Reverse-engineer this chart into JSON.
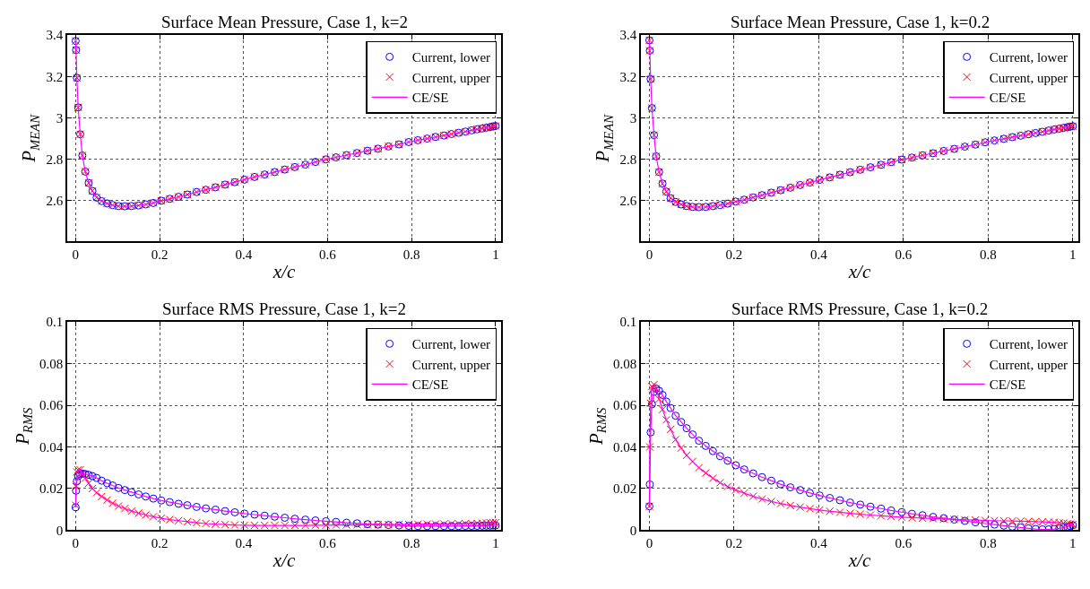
{
  "chart_data": [
    {
      "type": "scatter",
      "title": "Surface Mean Pressure, Case 1, k=2",
      "xlabel": "x/c",
      "ylabel": "P$_{MEAN}$",
      "xlim": [
        -0.02,
        1.013
      ],
      "ylim": [
        2.4,
        3.4
      ],
      "xticks": [
        0,
        0.2,
        0.4,
        0.6,
        0.8,
        1
      ],
      "yticks": [
        2.6,
        2.8,
        3,
        3.2,
        3.4
      ],
      "grid": true,
      "legend": "top right",
      "x": [
        0,
        0.001,
        0.003,
        0.006,
        0.011,
        0.016,
        0.023,
        0.031,
        0.04,
        0.05,
        0.062,
        0.075,
        0.088,
        0.102,
        0.117,
        0.133,
        0.15,
        0.167,
        0.185,
        0.204,
        0.224,
        0.245,
        0.266,
        0.288,
        0.31,
        0.333,
        0.356,
        0.379,
        0.402,
        0.426,
        0.45,
        0.474,
        0.498,
        0.522,
        0.547,
        0.571,
        0.596,
        0.62,
        0.645,
        0.67,
        0.695,
        0.72,
        0.745,
        0.77,
        0.793,
        0.815,
        0.837,
        0.857,
        0.877,
        0.895,
        0.912,
        0.928,
        0.943,
        0.956,
        0.968,
        0.978,
        0.987,
        0.994,
        1.0
      ],
      "series": [
        {
          "name": "Current, lower",
          "marker": "circle",
          "color": "#0000ff",
          "values": [
            3.372,
            3.328,
            3.193,
            3.05,
            2.92,
            2.817,
            2.739,
            2.684,
            2.645,
            2.613,
            2.596,
            2.585,
            2.577,
            2.572,
            2.571,
            2.572,
            2.575,
            2.58,
            2.587,
            2.598,
            2.607,
            2.617,
            2.628,
            2.64,
            2.651,
            2.663,
            2.676,
            2.688,
            2.7,
            2.713,
            2.725,
            2.737,
            2.749,
            2.761,
            2.773,
            2.786,
            2.798,
            2.808,
            2.819,
            2.829,
            2.84,
            2.85,
            2.861,
            2.871,
            2.882,
            2.891,
            2.899,
            2.907,
            2.914,
            2.921,
            2.927,
            2.933,
            2.939,
            2.944,
            2.948,
            2.952,
            2.955,
            2.958,
            2.96
          ]
        },
        {
          "name": "Current, upper",
          "marker": "cross",
          "color": "#ff0000",
          "values": [
            3.372,
            3.328,
            3.193,
            3.05,
            2.92,
            2.817,
            2.739,
            2.684,
            2.645,
            2.613,
            2.596,
            2.585,
            2.577,
            2.572,
            2.571,
            2.572,
            2.575,
            2.58,
            2.587,
            2.598,
            2.607,
            2.617,
            2.628,
            2.64,
            2.651,
            2.663,
            2.676,
            2.688,
            2.7,
            2.713,
            2.725,
            2.737,
            2.749,
            2.761,
            2.773,
            2.786,
            2.798,
            2.808,
            2.819,
            2.829,
            2.84,
            2.85,
            2.861,
            2.871,
            2.882,
            2.891,
            2.899,
            2.907,
            2.914,
            2.921,
            2.927,
            2.933,
            2.939,
            2.944,
            2.948,
            2.952,
            2.955,
            2.958,
            2.96
          ]
        },
        {
          "name": "CE/SE",
          "type": "line",
          "line_style": "solid",
          "color": "#ff00ff",
          "values": [
            3.372,
            3.328,
            3.193,
            3.05,
            2.92,
            2.817,
            2.739,
            2.684,
            2.645,
            2.613,
            2.596,
            2.585,
            2.577,
            2.572,
            2.571,
            2.572,
            2.575,
            2.58,
            2.587,
            2.598,
            2.607,
            2.617,
            2.628,
            2.64,
            2.651,
            2.663,
            2.676,
            2.688,
            2.7,
            2.713,
            2.725,
            2.737,
            2.749,
            2.761,
            2.773,
            2.786,
            2.798,
            2.808,
            2.819,
            2.829,
            2.84,
            2.85,
            2.861,
            2.871,
            2.882,
            2.891,
            2.899,
            2.907,
            2.914,
            2.921,
            2.927,
            2.933,
            2.939,
            2.944,
            2.948,
            2.952,
            2.955,
            2.958,
            2.96
          ]
        }
      ]
    },
    {
      "type": "scatter",
      "title": "Surface Mean Pressure, Case 1, k=0.2",
      "xlabel": "x/c",
      "ylabel": "P$_{MEAN}$",
      "xlim": [
        -0.02,
        1.013
      ],
      "ylim": [
        2.4,
        3.4
      ],
      "xticks": [
        0,
        0.2,
        0.4,
        0.6,
        0.8,
        1
      ],
      "yticks": [
        2.6,
        2.8,
        3,
        3.2,
        3.4
      ],
      "grid": true,
      "legend": "top right",
      "x": [
        0,
        0.001,
        0.003,
        0.006,
        0.011,
        0.016,
        0.023,
        0.031,
        0.04,
        0.05,
        0.062,
        0.075,
        0.088,
        0.102,
        0.117,
        0.133,
        0.15,
        0.167,
        0.185,
        0.204,
        0.224,
        0.245,
        0.266,
        0.288,
        0.31,
        0.333,
        0.356,
        0.379,
        0.402,
        0.426,
        0.45,
        0.474,
        0.498,
        0.522,
        0.547,
        0.571,
        0.596,
        0.62,
        0.645,
        0.67,
        0.695,
        0.72,
        0.745,
        0.77,
        0.793,
        0.815,
        0.837,
        0.857,
        0.877,
        0.895,
        0.912,
        0.928,
        0.943,
        0.956,
        0.968,
        0.978,
        0.987,
        0.994,
        1.0
      ],
      "series": [
        {
          "name": "Current, lower",
          "marker": "circle",
          "color": "#0000ff",
          "values": [
            3.375,
            3.325,
            3.187,
            3.047,
            2.916,
            2.813,
            2.737,
            2.681,
            2.642,
            2.61,
            2.592,
            2.58,
            2.572,
            2.568,
            2.567,
            2.568,
            2.572,
            2.577,
            2.584,
            2.594,
            2.603,
            2.614,
            2.625,
            2.637,
            2.649,
            2.661,
            2.674,
            2.686,
            2.699,
            2.711,
            2.724,
            2.736,
            2.748,
            2.76,
            2.772,
            2.785,
            2.797,
            2.807,
            2.818,
            2.828,
            2.839,
            2.849,
            2.86,
            2.87,
            2.881,
            2.89,
            2.898,
            2.906,
            2.913,
            2.92,
            2.926,
            2.932,
            2.938,
            2.943,
            2.947,
            2.951,
            2.954,
            2.957,
            2.959
          ]
        },
        {
          "name": "Current, upper",
          "marker": "cross",
          "color": "#ff0000",
          "values": [
            3.375,
            3.325,
            3.187,
            3.047,
            2.916,
            2.813,
            2.737,
            2.681,
            2.642,
            2.61,
            2.592,
            2.58,
            2.572,
            2.568,
            2.567,
            2.568,
            2.572,
            2.577,
            2.584,
            2.594,
            2.603,
            2.614,
            2.625,
            2.637,
            2.649,
            2.661,
            2.674,
            2.686,
            2.699,
            2.711,
            2.724,
            2.736,
            2.748,
            2.76,
            2.772,
            2.785,
            2.797,
            2.807,
            2.818,
            2.828,
            2.839,
            2.849,
            2.86,
            2.87,
            2.881,
            2.89,
            2.898,
            2.906,
            2.913,
            2.92,
            2.926,
            2.932,
            2.938,
            2.943,
            2.947,
            2.951,
            2.954,
            2.957,
            2.959
          ]
        },
        {
          "name": "CE/SE",
          "type": "line",
          "line_style": "solid",
          "color": "#ff00ff",
          "values": [
            3.375,
            3.325,
            3.187,
            3.047,
            2.916,
            2.813,
            2.737,
            2.681,
            2.642,
            2.61,
            2.592,
            2.58,
            2.572,
            2.568,
            2.567,
            2.568,
            2.572,
            2.577,
            2.584,
            2.594,
            2.603,
            2.614,
            2.625,
            2.637,
            2.649,
            2.661,
            2.674,
            2.686,
            2.699,
            2.711,
            2.724,
            2.736,
            2.748,
            2.76,
            2.772,
            2.785,
            2.797,
            2.807,
            2.818,
            2.828,
            2.839,
            2.849,
            2.86,
            2.87,
            2.881,
            2.89,
            2.898,
            2.906,
            2.913,
            2.92,
            2.926,
            2.932,
            2.938,
            2.943,
            2.947,
            2.951,
            2.954,
            2.957,
            2.959
          ]
        }
      ]
    },
    {
      "type": "scatter",
      "title": "Surface RMS Pressure, Case 1, k=2",
      "xlabel": "x/c",
      "ylabel": "P$_{RMS}$",
      "xlim": [
        -0.02,
        1.013
      ],
      "ylim": [
        0,
        0.1
      ],
      "xticks": [
        0,
        0.2,
        0.4,
        0.6,
        0.8,
        1
      ],
      "yticks": [
        0,
        0.02,
        0.04,
        0.06,
        0.08,
        0.1
      ],
      "grid": true,
      "legend": "top right",
      "x": [
        0,
        0.001,
        0.003,
        0.006,
        0.011,
        0.016,
        0.023,
        0.031,
        0.04,
        0.05,
        0.062,
        0.075,
        0.088,
        0.102,
        0.117,
        0.133,
        0.15,
        0.167,
        0.185,
        0.204,
        0.224,
        0.245,
        0.266,
        0.288,
        0.31,
        0.333,
        0.356,
        0.379,
        0.402,
        0.426,
        0.45,
        0.474,
        0.498,
        0.522,
        0.547,
        0.571,
        0.596,
        0.62,
        0.645,
        0.67,
        0.695,
        0.72,
        0.745,
        0.77,
        0.793,
        0.815,
        0.837,
        0.857,
        0.877,
        0.895,
        0.912,
        0.928,
        0.943,
        0.956,
        0.968,
        0.978,
        0.987,
        0.994,
        1.0
      ],
      "series": [
        {
          "name": "Current, lower",
          "marker": "circle",
          "color": "#0000ff",
          "values": [
            0.011,
            0.019,
            0.0235,
            0.026,
            0.027,
            0.0272,
            0.027,
            0.0266,
            0.026,
            0.0251,
            0.0238,
            0.0226,
            0.0215,
            0.0203,
            0.0193,
            0.0183,
            0.0172,
            0.0162,
            0.0152,
            0.0143,
            0.0135,
            0.0127,
            0.012,
            0.0112,
            0.0105,
            0.0099,
            0.0092,
            0.0086,
            0.008,
            0.0075,
            0.007,
            0.0065,
            0.006,
            0.0055,
            0.0051,
            0.0047,
            0.0043,
            0.004,
            0.0036,
            0.0033,
            0.0029,
            0.0027,
            0.0025,
            0.0023,
            0.0021,
            0.002,
            0.002,
            0.002,
            0.002,
            0.002,
            0.002,
            0.0021,
            0.0021,
            0.0021,
            0.0022,
            0.0022,
            0.0022,
            0.0023,
            0.0023
          ]
        },
        {
          "name": "Current, upper",
          "marker": "cross",
          "color": "#ff0000",
          "values": [
            0.012,
            0.021,
            0.028,
            0.029,
            0.029,
            0.027,
            0.025,
            0.0225,
            0.02,
            0.018,
            0.0162,
            0.0145,
            0.013,
            0.0116,
            0.0104,
            0.0092,
            0.0082,
            0.0073,
            0.0065,
            0.0057,
            0.0051,
            0.0046,
            0.0041,
            0.0036,
            0.0032,
            0.0029,
            0.0027,
            0.0025,
            0.0024,
            0.0023,
            0.0023,
            0.0023,
            0.0023,
            0.0023,
            0.0023,
            0.0024,
            0.0024,
            0.0025,
            0.0025,
            0.0026,
            0.0026,
            0.0027,
            0.0027,
            0.0028,
            0.0028,
            0.0029,
            0.0029,
            0.003,
            0.003,
            0.0031,
            0.0031,
            0.0032,
            0.0032,
            0.0033,
            0.0034,
            0.0035,
            0.0036,
            0.0037,
            0.0037
          ]
        },
        {
          "name": "CE/SE",
          "type": "line",
          "line_style": "solid",
          "color": "#ff00ff",
          "values": [
            0.011,
            0.019,
            0.0235,
            0.026,
            0.027,
            0.0272,
            0.027,
            0.0266,
            0.026,
            0.0251,
            0.0238,
            0.0226,
            0.0215,
            0.0203,
            0.0193,
            0.0183,
            0.0172,
            0.0162,
            0.0152,
            0.0143,
            0.0135,
            0.0127,
            0.012,
            0.0112,
            0.0105,
            0.0099,
            0.0092,
            0.0086,
            0.008,
            0.0075,
            0.007,
            0.0065,
            0.006,
            0.0055,
            0.0051,
            0.0047,
            0.0043,
            0.004,
            0.0036,
            0.0033,
            0.0029,
            0.0027,
            0.0025,
            0.0023,
            0.0021,
            0.002,
            0.002,
            0.002,
            0.002,
            0.002,
            0.002,
            0.0021,
            0.0021,
            0.0021,
            0.0022,
            0.0022,
            0.0022,
            0.0023,
            0.0023
          ]
        },
        {
          "type": "line",
          "line_style": "solid",
          "color": "#ff00ff",
          "values": [
            0.012,
            0.021,
            0.028,
            0.029,
            0.029,
            0.027,
            0.025,
            0.0225,
            0.02,
            0.018,
            0.0162,
            0.0145,
            0.013,
            0.0116,
            0.0104,
            0.0092,
            0.0082,
            0.0073,
            0.0065,
            0.0057,
            0.0051,
            0.0046,
            0.0041,
            0.0036,
            0.0032,
            0.0029,
            0.0027,
            0.0025,
            0.0024,
            0.0023,
            0.0023,
            0.0023,
            0.0023,
            0.0023,
            0.0023,
            0.0024,
            0.0024,
            0.0025,
            0.0025,
            0.0026,
            0.0026,
            0.0027,
            0.0027,
            0.0028,
            0.0028,
            0.0029,
            0.0029,
            0.003,
            0.003,
            0.0031,
            0.0031,
            0.0032,
            0.0032,
            0.0033,
            0.0034,
            0.0035,
            0.0036,
            0.0037,
            0.0037
          ]
        }
      ]
    },
    {
      "type": "scatter",
      "title": "Surface RMS Pressure, Case 1, k=0.2",
      "xlabel": "x/c",
      "ylabel": "P$_{RMS}$",
      "xlim": [
        -0.02,
        1.013
      ],
      "ylim": [
        0,
        0.1
      ],
      "xticks": [
        0,
        0.2,
        0.4,
        0.6,
        0.8,
        1
      ],
      "yticks": [
        0,
        0.02,
        0.04,
        0.06,
        0.08,
        0.1
      ],
      "grid": true,
      "legend": "top right",
      "x": [
        0,
        0.001,
        0.003,
        0.006,
        0.011,
        0.016,
        0.023,
        0.031,
        0.04,
        0.05,
        0.062,
        0.075,
        0.088,
        0.102,
        0.117,
        0.133,
        0.15,
        0.167,
        0.185,
        0.204,
        0.224,
        0.245,
        0.266,
        0.288,
        0.31,
        0.333,
        0.356,
        0.379,
        0.402,
        0.426,
        0.45,
        0.474,
        0.498,
        0.522,
        0.547,
        0.571,
        0.596,
        0.62,
        0.645,
        0.67,
        0.695,
        0.72,
        0.745,
        0.77,
        0.793,
        0.815,
        0.837,
        0.857,
        0.877,
        0.895,
        0.912,
        0.928,
        0.943,
        0.956,
        0.968,
        0.978,
        0.987,
        0.994,
        1.0
      ],
      "series": [
        {
          "name": "Current, lower",
          "marker": "circle",
          "color": "#0000ff",
          "values": [
            0.0115,
            0.022,
            0.047,
            0.0605,
            0.0665,
            0.068,
            0.067,
            0.065,
            0.0618,
            0.0587,
            0.055,
            0.052,
            0.049,
            0.046,
            0.043,
            0.0405,
            0.038,
            0.0356,
            0.0334,
            0.0312,
            0.0292,
            0.0273,
            0.0255,
            0.0238,
            0.0221,
            0.0206,
            0.0193,
            0.0179,
            0.0167,
            0.0155,
            0.0144,
            0.0133,
            0.0123,
            0.0113,
            0.0104,
            0.0095,
            0.0087,
            0.0079,
            0.0072,
            0.0064,
            0.0058,
            0.0051,
            0.0045,
            0.0038,
            0.0032,
            0.0027,
            0.0022,
            0.0017,
            0.0013,
            0.0009,
            0.0006,
            0.0004,
            0.0004,
            0.0006,
            0.0009,
            0.0012,
            0.0016,
            0.002,
            0.0024
          ]
        },
        {
          "name": "Current, upper",
          "marker": "cross",
          "color": "#ff0000",
          "values": [
            0.0115,
            0.04,
            0.061,
            0.069,
            0.07,
            0.068,
            0.063,
            0.058,
            0.053,
            0.0485,
            0.0435,
            0.0395,
            0.036,
            0.033,
            0.03,
            0.0275,
            0.025,
            0.0228,
            0.021,
            0.0193,
            0.0178,
            0.0163,
            0.015,
            0.0138,
            0.0128,
            0.0119,
            0.0111,
            0.0104,
            0.0097,
            0.0091,
            0.0086,
            0.0081,
            0.0077,
            0.0073,
            0.0069,
            0.0066,
            0.0063,
            0.006,
            0.0058,
            0.0056,
            0.0054,
            0.0052,
            0.005,
            0.0049,
            0.0047,
            0.0046,
            0.0045,
            0.0044,
            0.0043,
            0.0042,
            0.0041,
            0.004,
            0.0039,
            0.0038,
            0.0036,
            0.0034,
            0.0032,
            0.003,
            0.0028
          ]
        },
        {
          "name": "CE/SE",
          "type": "line",
          "line_style": "solid",
          "color": "#ff00ff",
          "values": [
            0.0115,
            0.022,
            0.047,
            0.0605,
            0.0665,
            0.068,
            0.067,
            0.065,
            0.0618,
            0.0587,
            0.055,
            0.052,
            0.049,
            0.046,
            0.043,
            0.0405,
            0.038,
            0.0356,
            0.0334,
            0.0312,
            0.0292,
            0.0273,
            0.0255,
            0.0238,
            0.0221,
            0.0206,
            0.0193,
            0.0179,
            0.0167,
            0.0155,
            0.0144,
            0.0133,
            0.0123,
            0.0113,
            0.0104,
            0.0095,
            0.0087,
            0.0079,
            0.0072,
            0.0064,
            0.0058,
            0.0051,
            0.0045,
            0.0038,
            0.0032,
            0.0027,
            0.0022,
            0.0017,
            0.0013,
            0.0009,
            0.0006,
            0.0004,
            0.0004,
            0.0006,
            0.0009,
            0.0012,
            0.0016,
            0.002,
            0.0024
          ]
        },
        {
          "type": "line",
          "line_style": "solid",
          "color": "#ff00ff",
          "values": [
            0.0115,
            0.04,
            0.061,
            0.069,
            0.07,
            0.068,
            0.063,
            0.058,
            0.053,
            0.0485,
            0.0435,
            0.0395,
            0.036,
            0.033,
            0.03,
            0.0275,
            0.025,
            0.0228,
            0.021,
            0.0193,
            0.0178,
            0.0163,
            0.015,
            0.0138,
            0.0128,
            0.0119,
            0.0111,
            0.0104,
            0.0097,
            0.0091,
            0.0086,
            0.0081,
            0.0077,
            0.0073,
            0.0069,
            0.0066,
            0.0063,
            0.006,
            0.0058,
            0.0056,
            0.0054,
            0.0052,
            0.005,
            0.0049,
            0.0047,
            0.0046,
            0.0045,
            0.0044,
            0.0043,
            0.0042,
            0.0041,
            0.004,
            0.0039,
            0.0038,
            0.0036,
            0.0034,
            0.0032,
            0.003,
            0.0028
          ]
        }
      ]
    }
  ]
}
